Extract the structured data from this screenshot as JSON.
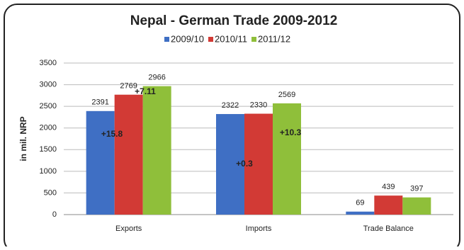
{
  "chart_data": {
    "type": "bar",
    "title": "Nepal - German Trade 2009-2012",
    "y_label": "in mil. NRP",
    "categories": [
      "Exports",
      "Imports",
      "Trade Balance"
    ],
    "series": [
      {
        "name": "2009/10",
        "color": "#3f6fc4",
        "values": [
          2391,
          2322,
          69
        ]
      },
      {
        "name": "2010/11",
        "color": "#d23a35",
        "values": [
          2769,
          2330,
          439
        ]
      },
      {
        "name": "2011/12",
        "color": "#8fbf3a",
        "values": [
          2966,
          2569,
          397
        ]
      }
    ],
    "annotations": [
      "+15.8",
      "+7.11",
      "+0.3",
      "+10.3"
    ],
    "ylim": [
      0,
      3500
    ],
    "yticks": [
      0,
      500,
      1000,
      1500,
      2000,
      2500,
      3000,
      3500
    ],
    "grid": true,
    "legend": "top"
  }
}
